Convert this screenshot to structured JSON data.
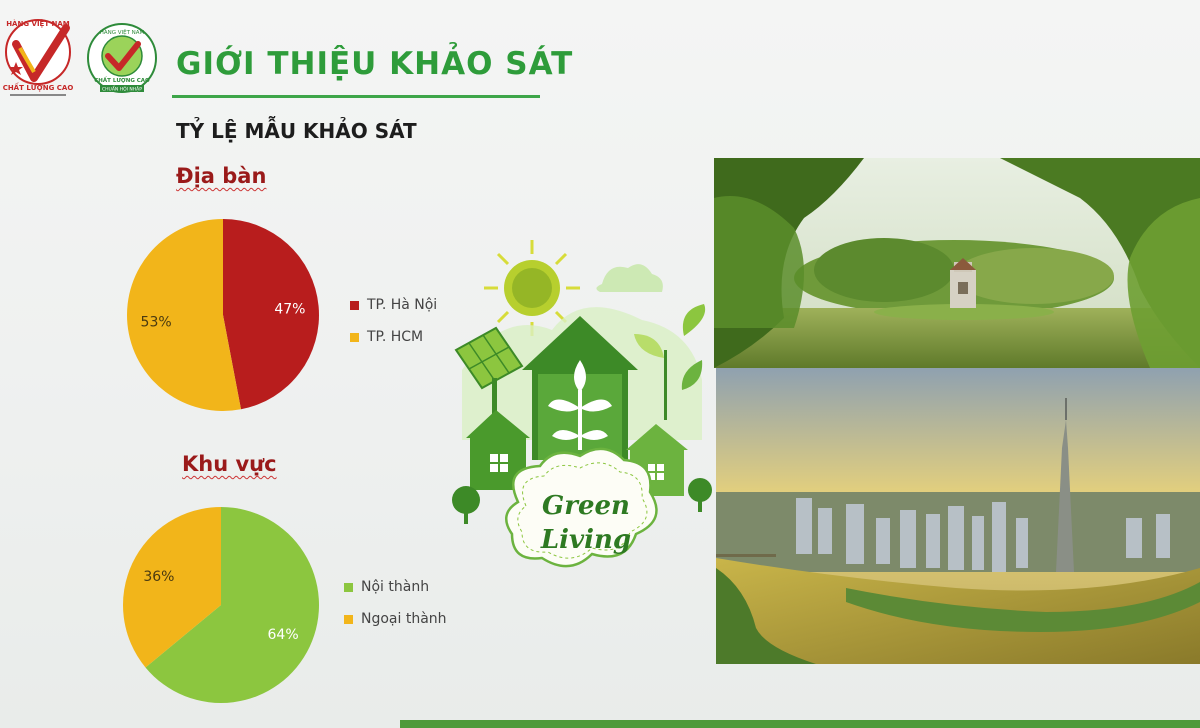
{
  "header": {
    "title": "GIỚI THIỆU KHẢO SÁT",
    "subtitle": "TỶ LỆ MẪU KHẢO SÁT"
  },
  "logos": {
    "left_text_top": "HÀNG VIỆT NAM",
    "left_text_bottom": "CHẤT LƯỢNG CAO",
    "right_text_top": "HÀNG VIỆT NAM",
    "right_text_mid": "CHẤT LƯỢNG CAO",
    "right_text_bottom": "CHUẨN HỘI NHẬP"
  },
  "illustration": {
    "line1": "Green",
    "line2": "Living"
  },
  "chart_data": [
    {
      "type": "pie",
      "title": "Địa bàn",
      "categories": [
        "TP. Hà Nội",
        "TP. HCM"
      ],
      "values": [
        47,
        53
      ],
      "labels": [
        "47%",
        "53%"
      ],
      "colors": [
        "#b81d1d",
        "#f2b51a"
      ],
      "label_colors": [
        "#ffffff",
        "#4a3a10"
      ],
      "legend_position": "right"
    },
    {
      "type": "pie",
      "title": "Khu vực",
      "categories": [
        "Nội thành",
        "Ngoại thành"
      ],
      "values": [
        64,
        36
      ],
      "labels": [
        "64%",
        "36%"
      ],
      "colors": [
        "#8cc63f",
        "#f2b51a"
      ],
      "label_colors": [
        "#ffffff",
        "#4a3a10"
      ],
      "legend_position": "right"
    }
  ]
}
